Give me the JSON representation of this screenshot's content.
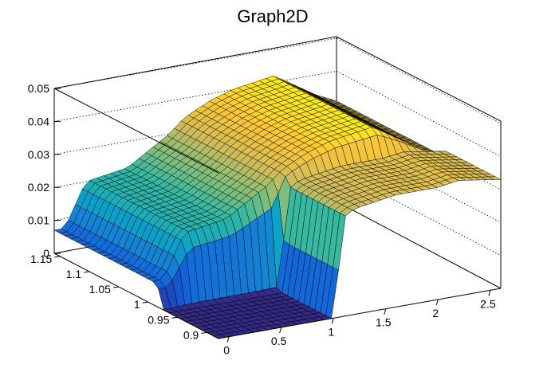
{
  "chart_data": {
    "type": "surface",
    "title": "Graph2D",
    "x_axis": {
      "range": [
        -0.1,
        2.6
      ],
      "ticks": [
        "0",
        "0.5",
        "1",
        "1.5",
        "2",
        "2.5"
      ],
      "tick_values": [
        0,
        0.5,
        1,
        1.5,
        2,
        2.5
      ]
    },
    "y_axis": {
      "range": [
        0.88,
        1.16
      ],
      "ticks": [
        "0.9",
        "0.95",
        "1",
        "1.05",
        "1.1",
        "1.15"
      ],
      "tick_values": [
        0.9,
        0.95,
        1.0,
        1.05,
        1.1,
        1.15
      ]
    },
    "z_axis": {
      "range": [
        0,
        0.05
      ],
      "ticks": [
        "0",
        "0.01",
        "0.02",
        "0.03",
        "0.04",
        "0.05"
      ],
      "tick_values": [
        0,
        0.01,
        0.02,
        0.03,
        0.04,
        0.05
      ]
    },
    "colormap": "parula",
    "colors": [
      "#352a87",
      "#0f5cdd",
      "#1481d6",
      "#06a4ca",
      "#2eb7a4",
      "#87bf77",
      "#d1bb59",
      "#fec832",
      "#f9fb0e"
    ],
    "grid": true,
    "surface_profile": {
      "description_x": [
        0,
        0.2,
        0.4,
        0.6,
        0.8,
        1.0,
        1.1,
        1.2,
        1.4,
        1.6,
        1.8,
        2.0,
        2.2,
        2.4,
        2.6
      ],
      "z_at_y_high": [
        0.007,
        0.02,
        0.021,
        0.022,
        0.026,
        0.03,
        0.033,
        0.035,
        0.038,
        0.04,
        0.041,
        0.042,
        0.038,
        0.034,
        0.031
      ],
      "z_at_y_low": [
        0,
        0,
        0,
        0,
        0,
        0,
        0.03,
        0.032,
        0.033,
        0.034,
        0.034,
        0.034,
        0.035,
        0.034,
        0.033
      ],
      "step_y": 0.985
    }
  }
}
